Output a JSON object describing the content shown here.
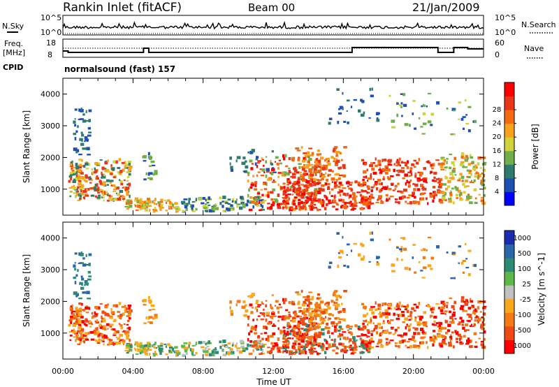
{
  "header": {
    "station": "Rankin Inlet (fitACF)",
    "beam": "Beam 00",
    "date": "21/Jan/2009"
  },
  "panels": {
    "nsky_label": "N.Sky",
    "nsearch_label": "N.Search",
    "freq_label_1": "Freq.",
    "freq_label_2": "[MHz]",
    "nave_label": "Nave",
    "cpid_label": "CPID",
    "cpid_value": "normalsound (fast) 157",
    "nsky_ticks": [
      "10^5",
      "10^0"
    ],
    "nsearch_ticks": [
      "10^5",
      "10^0"
    ],
    "freq_ticks": [
      "18",
      "8"
    ],
    "nave_ticks": [
      "60",
      "0"
    ]
  },
  "colors": {
    "power": [
      "#0000ff",
      "#1e4fb4",
      "#2e7a6e",
      "#6fae4a",
      "#cfd23a",
      "#f7a21a",
      "#f46a10",
      "#e8361a",
      "#ff0000"
    ],
    "velocity": [
      "#1d2bb0",
      "#2a66a8",
      "#2d8a73",
      "#5fb84a",
      "#c0c0c0",
      "#f8a81c",
      "#f47a12",
      "#ee4a14",
      "#ff0000"
    ]
  },
  "chart_data": [
    {
      "type": "heatmap",
      "name": "power",
      "xlabel": "",
      "ylabel": "Slant Range [km]",
      "ylim": [
        180,
        4500
      ],
      "yticks": [
        "1000",
        "2000",
        "3000",
        "4000"
      ],
      "xticks": [
        "00:00",
        "04:00",
        "08:00",
        "12:00",
        "16:00",
        "20:00",
        "00:00"
      ],
      "colorbar_label": "Power [dB]",
      "colorbar_ticks": [
        "4",
        "8",
        "12",
        "16",
        "20",
        "24",
        "28"
      ],
      "colorbar_range": [
        0,
        30
      ]
    },
    {
      "type": "heatmap",
      "name": "velocity",
      "xlabel": "Time UT",
      "ylabel": "Slant Range [km]",
      "ylim": [
        180,
        4500
      ],
      "yticks": [
        "1000",
        "2000",
        "3000",
        "4000"
      ],
      "xticks": [
        "00:00",
        "04:00",
        "08:00",
        "12:00",
        "16:00",
        "20:00",
        "00:00"
      ],
      "colorbar_label": "Velocity [m s^-1]",
      "colorbar_ticks": [
        "1000",
        "500",
        "100",
        "25",
        "-25",
        "-100",
        "-500",
        "-1000"
      ]
    }
  ]
}
